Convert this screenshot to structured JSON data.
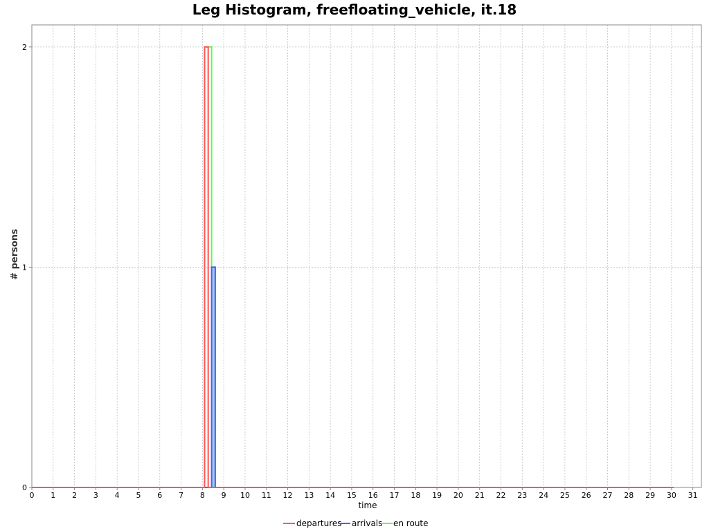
{
  "chart_data": {
    "type": "line",
    "title": "Leg Histogram, freefloating_vehicle, it.18",
    "xlabel": "time",
    "ylabel": "# persons",
    "xlim": [
      0,
      31.4
    ],
    "ylim": [
      0,
      2.1
    ],
    "xticks": [
      0,
      1,
      2,
      3,
      4,
      5,
      6,
      7,
      8,
      9,
      10,
      11,
      12,
      13,
      14,
      15,
      16,
      17,
      18,
      19,
      20,
      21,
      22,
      23,
      24,
      25,
      26,
      27,
      28,
      29,
      30,
      31
    ],
    "yticks": [
      0,
      1,
      2
    ],
    "grid": true,
    "legend_position": "bottom",
    "series": [
      {
        "name": "departures",
        "color": "#ff5555",
        "x": [
          0,
          8.1,
          8.1,
          8.27,
          8.27,
          30.1
        ],
        "y": [
          0,
          0,
          2,
          2,
          0,
          0
        ]
      },
      {
        "name": "arrivals",
        "color": "#5555ff",
        "x": [
          0,
          8.43,
          8.43,
          8.6,
          8.6,
          30.1
        ],
        "y": [
          0,
          0,
          1,
          1,
          0,
          0
        ]
      },
      {
        "name": "en route",
        "color": "#55ff55",
        "x": [
          0,
          8.1,
          8.1,
          8.27,
          8.27,
          8.43,
          8.43,
          8.6,
          8.6,
          30.1
        ],
        "y": [
          0,
          0,
          2,
          2,
          2,
          2,
          1,
          1,
          0,
          0
        ]
      }
    ]
  }
}
